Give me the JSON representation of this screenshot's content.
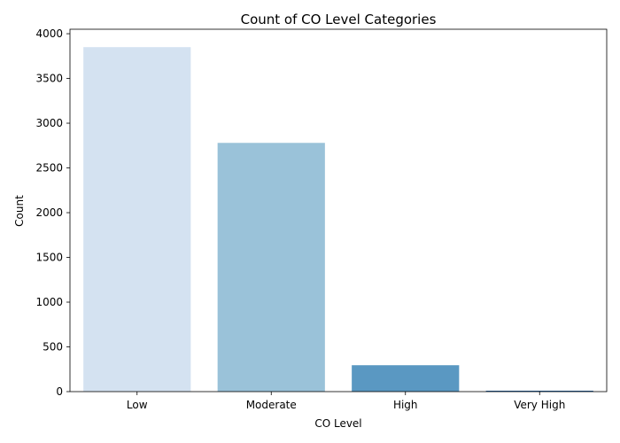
{
  "chart_data": {
    "type": "bar",
    "title": "Count of CO Level Categories",
    "xlabel": "CO Level",
    "ylabel": "Count",
    "categories": [
      "Low",
      "Moderate",
      "High",
      "Very High"
    ],
    "values": [
      3850,
      2780,
      295,
      10
    ],
    "colors": [
      "#d4e2f1",
      "#9ac2d9",
      "#5a98c2",
      "#1f5fa0"
    ],
    "ylim": [
      0,
      4050
    ],
    "yticks": [
      0,
      500,
      1000,
      1500,
      2000,
      2500,
      3000,
      3500,
      4000
    ],
    "grid": false
  }
}
